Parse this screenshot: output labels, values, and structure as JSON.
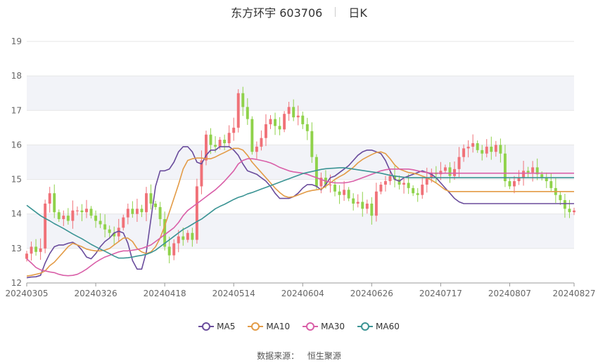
{
  "header": {
    "title": "东方环宇 603706",
    "period": "日K"
  },
  "source": {
    "label": "数据来源：",
    "value": "恒生聚源"
  },
  "colors": {
    "up": "#f07178",
    "down": "#8fd24a",
    "ma5": "#6a4c9c",
    "ma10": "#e39b46",
    "ma30": "#d95fa8",
    "ma60": "#3b9494",
    "band": "#f2f3f8",
    "grid": "#e6e6e6"
  },
  "chart_data": {
    "type": "candlestick",
    "ylim": [
      12,
      19
    ],
    "yticks": [
      "12",
      "13",
      "14",
      "15",
      "16",
      "17",
      "18",
      "19"
    ],
    "xticks": [
      "20240305",
      "20240326",
      "20240418",
      "20240514",
      "20240604",
      "20240626",
      "20240717",
      "20240807",
      "20240827"
    ],
    "xtick_index": [
      0,
      15,
      30,
      45,
      60,
      75,
      90,
      105,
      119
    ],
    "legend": [
      {
        "key": "ma5",
        "label": "MA5"
      },
      {
        "key": "ma10",
        "label": "MA10"
      },
      {
        "key": "ma30",
        "label": "MA30"
      },
      {
        "key": "ma60",
        "label": "MA60"
      }
    ],
    "closes": [
      12.85,
      13.05,
      12.9,
      13.0,
      14.3,
      14.6,
      14.05,
      13.85,
      13.95,
      13.8,
      14.1,
      14.1,
      14.05,
      14.15,
      13.95,
      13.8,
      13.7,
      13.55,
      13.45,
      13.35,
      13.6,
      13.9,
      14.15,
      14.0,
      14.15,
      14.05,
      14.6,
      14.3,
      14.2,
      13.85,
      13.05,
      12.8,
      13.15,
      13.35,
      13.25,
      13.45,
      13.25,
      14.8,
      15.55,
      16.3,
      16.0,
      15.95,
      16.15,
      16.05,
      16.35,
      16.5,
      17.5,
      17.1,
      16.75,
      15.8,
      15.95,
      16.2,
      16.6,
      16.75,
      16.55,
      16.45,
      16.9,
      17.1,
      16.8,
      16.85,
      16.6,
      16.4,
      15.65,
      14.8,
      15.05,
      14.85,
      14.85,
      14.65,
      14.55,
      14.7,
      14.45,
      14.3,
      14.35,
      14.15,
      14.3,
      13.95,
      14.65,
      14.85,
      14.95,
      15.1,
      15.0,
      14.85,
      14.9,
      14.75,
      14.6,
      14.55,
      14.85,
      15.05,
      15.2,
      15.15,
      15.25,
      15.35,
      15.1,
      15.3,
      15.65,
      15.9,
      15.95,
      16.05,
      15.85,
      15.75,
      15.95,
      15.8,
      16.0,
      15.75,
      14.95,
      14.8,
      14.95,
      15.05,
      15.25,
      15.2,
      15.35,
      15.15,
      15.05,
      14.95,
      14.75,
      14.55,
      14.4,
      14.15,
      14.05,
      14.1
    ],
    "series": [
      {
        "name": "MA5",
        "values": [
          12.15,
          12.17,
          12.18,
          12.22,
          12.58,
          12.85,
          13.05,
          13.1,
          13.1,
          13.15,
          13.18,
          13.1,
          12.95,
          12.75,
          12.7,
          12.85,
          13.05,
          13.2,
          13.3,
          13.45,
          13.5,
          13.45,
          13.15,
          12.65,
          12.4,
          12.4,
          12.9,
          13.85,
          14.8,
          15.25,
          15.25,
          15.3,
          15.5,
          15.8,
          15.95,
          15.95,
          15.8,
          15.5,
          15.45,
          15.7,
          15.85,
          15.85,
          15.95,
          15.95,
          15.95,
          15.85,
          15.7,
          15.45,
          15.25,
          15.2,
          15.15,
          15.05,
          14.95,
          14.8,
          14.6,
          14.45,
          14.45,
          14.45,
          14.5,
          14.6,
          14.75,
          14.85,
          14.85,
          14.8,
          14.7,
          14.85,
          15.05,
          15.1,
          15.2,
          15.3,
          15.4,
          15.55,
          15.7,
          15.8,
          15.85,
          15.85,
          15.8,
          15.75,
          15.55,
          15.25,
          15.0,
          14.95,
          15.05,
          15.1,
          15.15,
          15.2,
          15.25,
          15.2,
          15.15,
          15.05,
          14.9,
          14.75,
          14.6,
          14.45,
          14.35,
          14.3,
          14.3,
          14.3,
          14.3,
          14.3,
          14.3,
          14.3,
          14.3,
          14.3,
          14.3,
          14.3,
          14.3,
          14.3,
          14.3,
          14.3,
          14.3,
          14.3,
          14.3,
          14.3,
          14.3,
          14.3,
          14.3,
          14.3,
          14.3,
          14.3
        ]
      },
      {
        "name": "MA10",
        "values": [
          12.2,
          12.22,
          12.25,
          12.28,
          12.35,
          12.5,
          12.6,
          12.75,
          12.9,
          13.05,
          13.15,
          13.1,
          13.05,
          12.98,
          12.95,
          12.93,
          12.93,
          12.95,
          13.0,
          13.1,
          13.2,
          13.3,
          13.3,
          13.2,
          13.0,
          12.9,
          12.85,
          12.9,
          13.05,
          13.3,
          13.65,
          14.05,
          14.45,
          14.85,
          15.3,
          15.55,
          15.6,
          15.62,
          15.62,
          15.6,
          15.6,
          15.65,
          15.72,
          15.78,
          15.85,
          15.9,
          15.9,
          15.85,
          15.7,
          15.5,
          15.35,
          15.2,
          15.05,
          14.9,
          14.75,
          14.62,
          14.52,
          14.48,
          14.5,
          14.55,
          14.6,
          14.65,
          14.68,
          14.7,
          14.72,
          14.8,
          14.9,
          15.0,
          15.08,
          15.15,
          15.25,
          15.35,
          15.48,
          15.58,
          15.65,
          15.72,
          15.78,
          15.8,
          15.75,
          15.6,
          15.42,
          15.3,
          15.25,
          15.2,
          15.18,
          15.15,
          15.1,
          15.05,
          14.98,
          14.9,
          14.8,
          14.7,
          14.65,
          14.65,
          14.65,
          14.65,
          14.65,
          14.65,
          14.65,
          14.65,
          14.65,
          14.65,
          14.65,
          14.65,
          14.65,
          14.65,
          14.65,
          14.65,
          14.65,
          14.65,
          14.65,
          14.65,
          14.65,
          14.65,
          14.65,
          14.65,
          14.65,
          14.65,
          14.65,
          14.65
        ]
      },
      {
        "name": "MA30",
        "values": [
          12.7,
          12.58,
          12.45,
          12.38,
          12.35,
          12.32,
          12.3,
          12.25,
          12.22,
          12.21,
          12.22,
          12.25,
          12.32,
          12.4,
          12.5,
          12.6,
          12.68,
          12.75,
          12.8,
          12.85,
          12.9,
          12.93,
          12.93,
          12.95,
          12.97,
          13.0,
          13.05,
          13.1,
          13.2,
          13.3,
          13.4,
          13.5,
          13.6,
          13.75,
          13.95,
          14.1,
          14.2,
          14.3,
          14.4,
          14.5,
          14.6,
          14.7,
          14.82,
          14.95,
          15.1,
          15.25,
          15.45,
          15.55,
          15.6,
          15.6,
          15.58,
          15.55,
          15.52,
          15.48,
          15.42,
          15.35,
          15.3,
          15.25,
          15.22,
          15.2,
          15.18,
          15.15,
          15.1,
          15.05,
          15.0,
          14.95,
          14.92,
          14.9,
          14.9,
          14.9,
          14.92,
          14.95,
          15.0,
          15.05,
          15.1,
          15.15,
          15.2,
          15.25,
          15.28,
          15.3,
          15.3,
          15.3,
          15.3,
          15.3,
          15.28,
          15.25,
          15.22,
          15.2,
          15.18,
          15.18,
          15.18,
          15.18,
          15.18,
          15.18,
          15.18,
          15.18,
          15.18,
          15.18,
          15.18,
          15.18,
          15.18,
          15.18,
          15.18,
          15.18,
          15.18,
          15.18,
          15.18,
          15.18,
          15.18,
          15.18,
          15.18,
          15.18,
          15.18,
          15.18,
          15.18,
          15.18,
          15.18,
          15.18,
          15.18,
          15.18
        ]
      },
      {
        "name": "MA60",
        "values": [
          14.25,
          14.15,
          14.05,
          13.95,
          13.87,
          13.8,
          13.72,
          13.65,
          13.58,
          13.5,
          13.42,
          13.35,
          13.28,
          13.2,
          13.12,
          13.05,
          12.98,
          12.92,
          12.85,
          12.78,
          12.72,
          12.72,
          12.73,
          12.75,
          12.78,
          12.8,
          12.83,
          12.88,
          12.95,
          13.05,
          13.15,
          13.25,
          13.35,
          13.45,
          13.55,
          13.62,
          13.7,
          13.78,
          13.85,
          13.95,
          14.05,
          14.15,
          14.22,
          14.28,
          14.35,
          14.42,
          14.48,
          14.52,
          14.58,
          14.62,
          14.67,
          14.72,
          14.77,
          14.82,
          14.87,
          14.92,
          14.97,
          15.02,
          15.07,
          15.12,
          15.17,
          15.2,
          15.23,
          15.26,
          15.29,
          15.31,
          15.32,
          15.33,
          15.34,
          15.34,
          15.32,
          15.3,
          15.28,
          15.26,
          15.24,
          15.22,
          15.2,
          15.18,
          15.15,
          15.12,
          15.1,
          15.08,
          15.06,
          15.05,
          15.05,
          15.05,
          15.05,
          15.05,
          15.05,
          15.05,
          15.05,
          15.05,
          15.05,
          15.05,
          15.05,
          15.05,
          15.05,
          15.05,
          15.05,
          15.05,
          15.05,
          15.05,
          15.05,
          15.05,
          15.05,
          15.05,
          15.05,
          15.05,
          15.05,
          15.05,
          15.05,
          15.05,
          15.05,
          15.05,
          15.05,
          15.05,
          15.05,
          15.05,
          15.05,
          15.05
        ]
      }
    ]
  }
}
